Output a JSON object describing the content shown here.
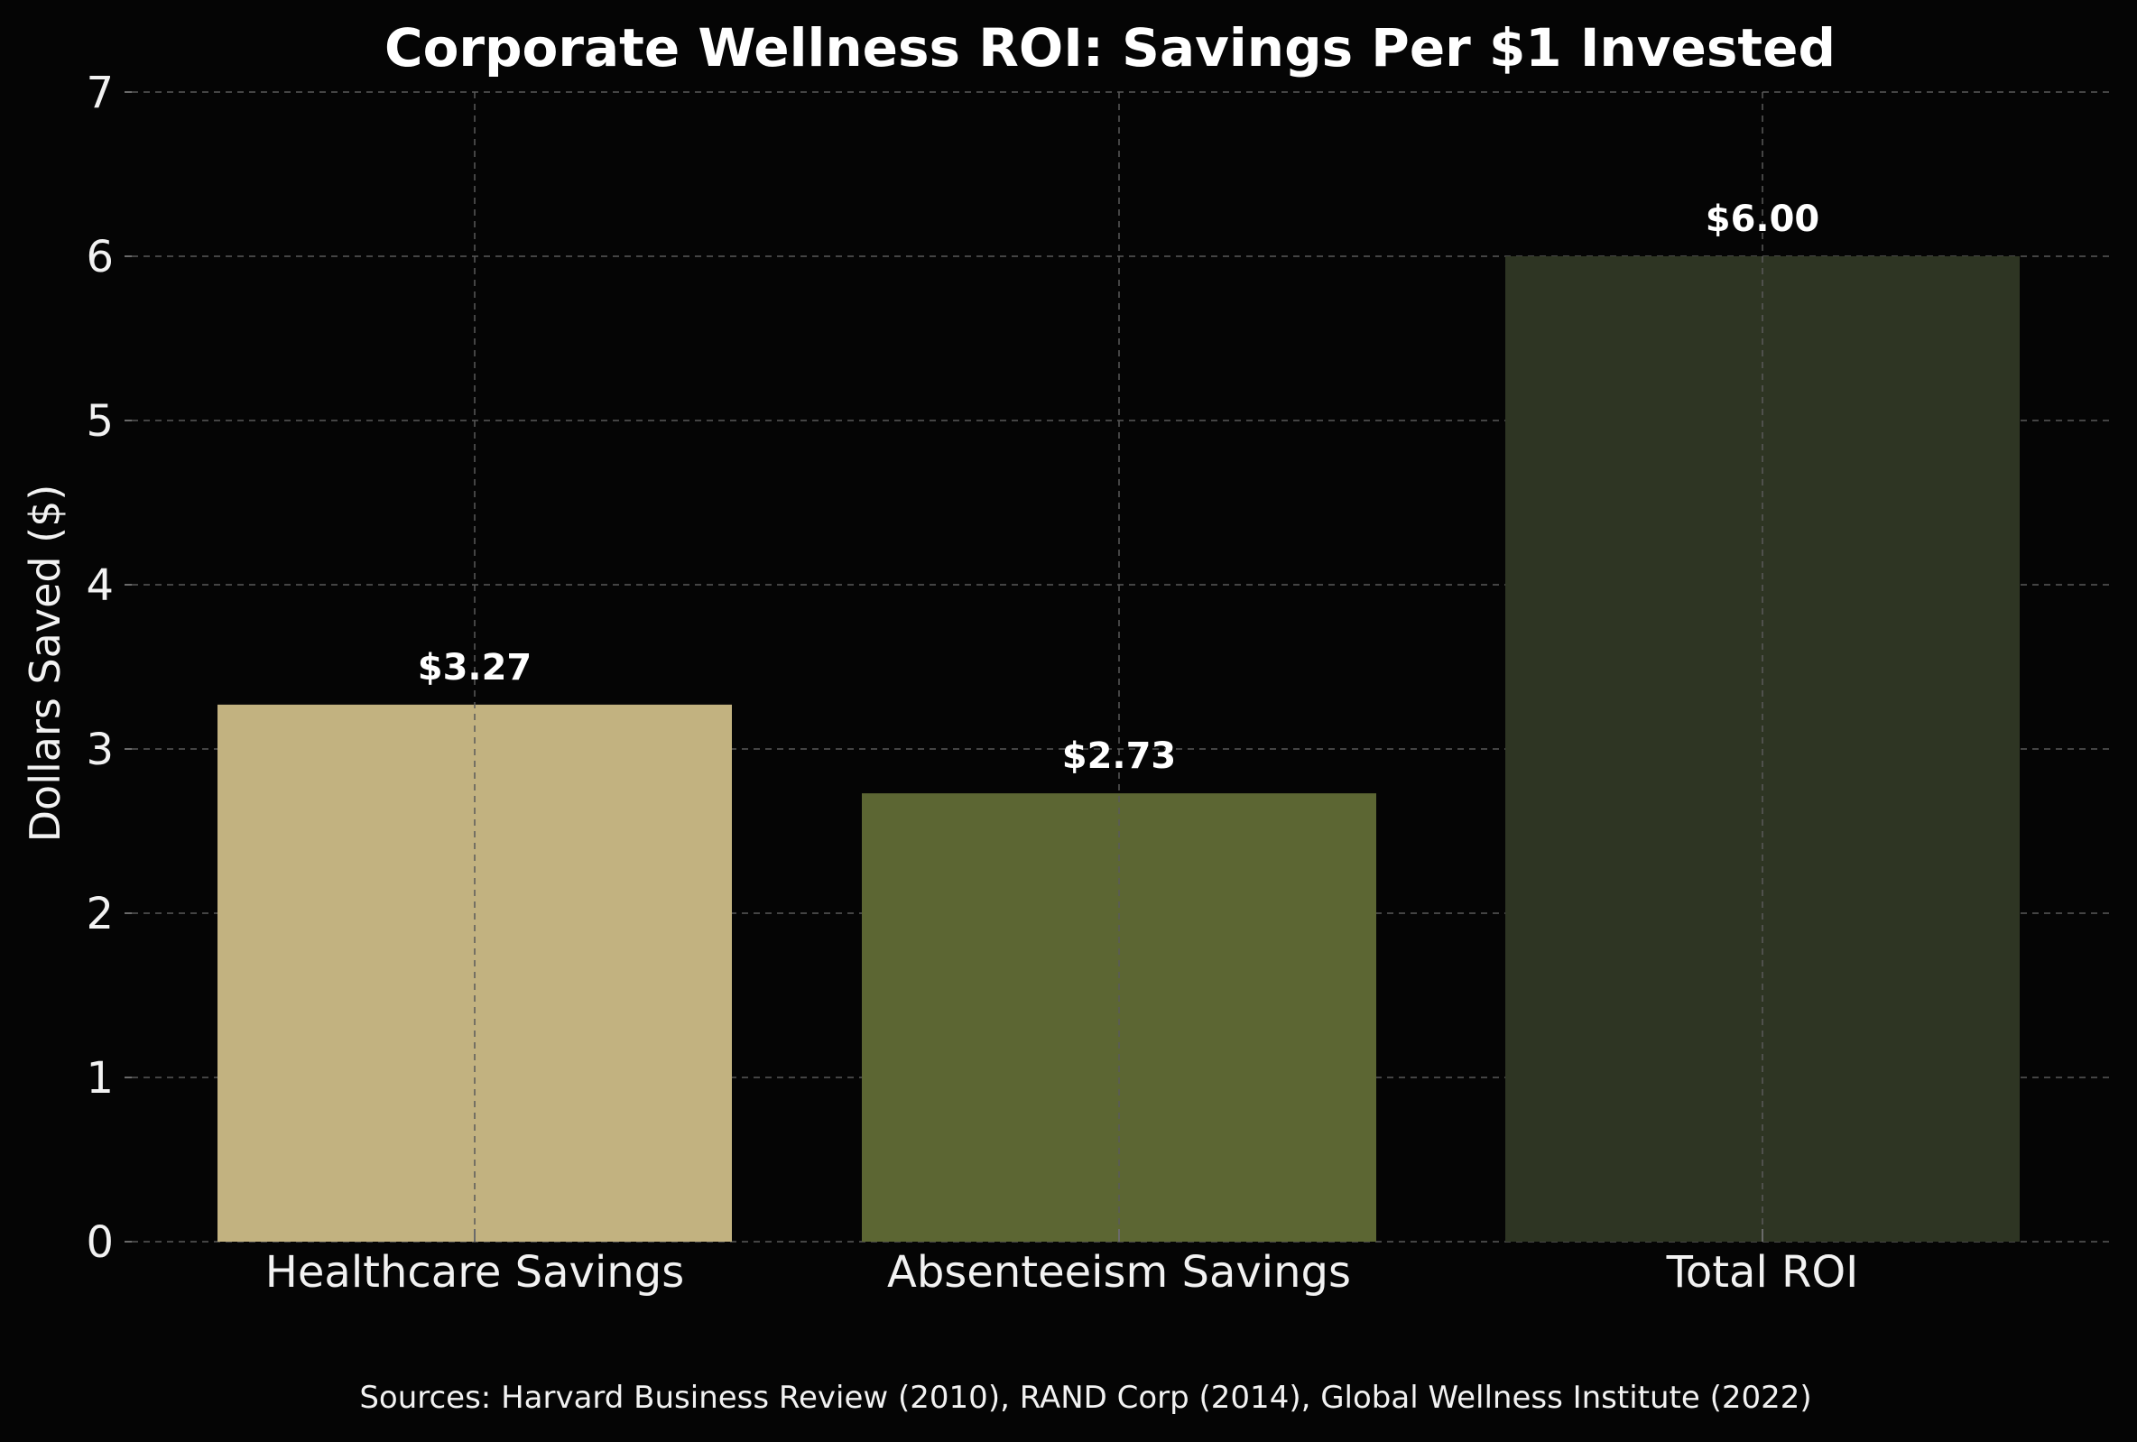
{
  "chart_data": {
    "type": "bar",
    "title": "Corporate Wellness ROI: Savings Per $1 Invested",
    "xlabel": "",
    "ylabel": "Dollars Saved ($)",
    "ylim": [
      0,
      7
    ],
    "yticks": [
      0,
      1,
      2,
      3,
      4,
      5,
      6,
      7
    ],
    "categories": [
      "Healthcare Savings",
      "Absenteeism Savings",
      "Total ROI"
    ],
    "values": [
      3.27,
      2.73,
      6.0
    ],
    "value_labels": [
      "$3.27",
      "$2.73",
      "$6.00"
    ],
    "colors": [
      "#c2b280",
      "#5c6633",
      "#2e3523"
    ],
    "grid": true,
    "source_note": "Sources: Harvard Business Review (2010), RAND Corp (2014), Global Wellness Institute (2022)"
  },
  "colors": {
    "background": "#050505",
    "text": "#ffffff",
    "grid": "#5a5a5a"
  }
}
